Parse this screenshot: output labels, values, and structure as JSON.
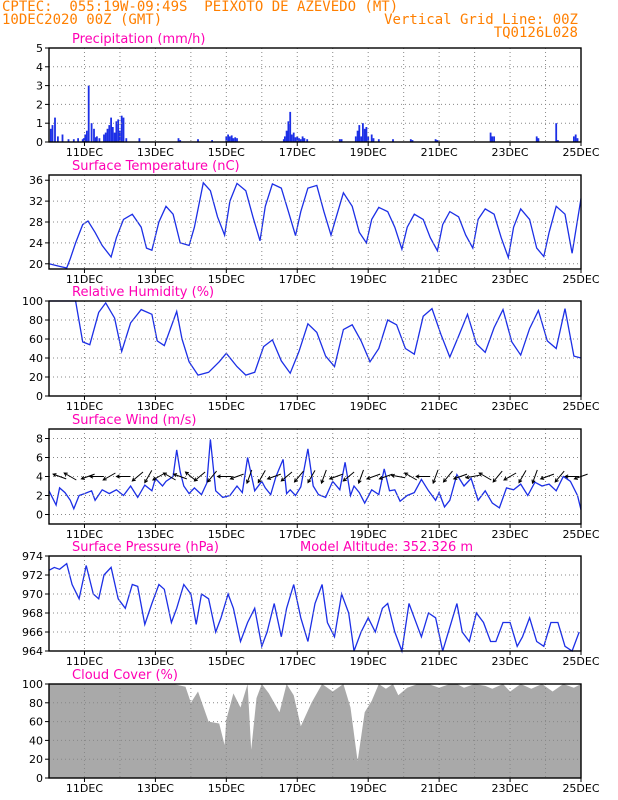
{
  "header": {
    "line1": "CPTEC:  055:19W-09:49S  PEIXOTO DE AZEVEDO (MT)",
    "line2_left": "10DEC2020 00Z (GMT)",
    "line2_right": "Vertical Grid Line: 00Z",
    "line3_right": "TQ0126L028"
  },
  "colors": {
    "header": "#ff7f00",
    "panel_title": "#ff00b4",
    "series": "#1c2fe6",
    "cloud": "#a9a9a9",
    "axis": "#000000"
  },
  "x_axis": {
    "range": [
      10.0,
      25.0
    ],
    "tick_values": [
      11,
      13,
      15,
      17,
      19,
      21,
      23,
      25
    ],
    "tick_labels": [
      "11DEC",
      "13DEC",
      "15DEC",
      "17DEC",
      "19DEC",
      "21DEC",
      "23DEC",
      "25DEC"
    ],
    "grid_every_day": true
  },
  "chart_data": [
    {
      "type": "bar",
      "title": "Precipitation (mm/h)",
      "ylim": [
        0,
        5
      ],
      "yticks": [
        0,
        1,
        2,
        3,
        4,
        5
      ],
      "grid": true,
      "x": [
        10.05,
        10.1,
        10.17,
        10.25,
        10.38,
        10.55,
        10.7,
        10.82,
        10.95,
        10.98,
        11.02,
        11.07,
        11.12,
        11.2,
        11.27,
        11.32,
        11.35,
        11.42,
        11.55,
        11.6,
        11.65,
        11.7,
        11.75,
        11.8,
        11.85,
        11.9,
        11.95,
        12.0,
        12.05,
        12.1,
        12.18,
        12.55,
        13.65,
        13.7,
        14.2,
        14.6,
        15.0,
        15.05,
        15.1,
        15.15,
        15.2,
        15.25,
        15.3,
        16.62,
        16.65,
        16.7,
        16.75,
        16.8,
        16.85,
        16.9,
        16.95,
        17.0,
        17.05,
        17.1,
        17.15,
        17.2,
        17.28,
        18.2,
        18.25,
        18.65,
        18.7,
        18.75,
        18.8,
        18.85,
        18.9,
        18.95,
        19.0,
        19.1,
        19.15,
        19.3,
        19.7,
        20.2,
        20.25,
        20.9,
        20.95,
        22.45,
        22.5,
        22.55,
        23.75,
        23.8,
        24.3,
        24.35,
        24.8,
        24.85,
        24.9
      ],
      "values": [
        0.7,
        0.9,
        1.3,
        0.3,
        0.4,
        0.15,
        0.15,
        0.2,
        0.15,
        0.2,
        0.4,
        0.6,
        3.0,
        1.0,
        0.7,
        0.25,
        0.3,
        0.2,
        0.4,
        0.5,
        0.7,
        0.9,
        1.3,
        0.8,
        0.5,
        1.1,
        1.2,
        0.6,
        1.4,
        1.3,
        0.2,
        0.2,
        0.2,
        0.1,
        0.15,
        0.1,
        0.3,
        0.4,
        0.3,
        0.35,
        0.2,
        0.25,
        0.2,
        0.15,
        0.3,
        0.6,
        1.1,
        1.6,
        0.4,
        0.5,
        0.25,
        0.3,
        0.2,
        0.15,
        0.3,
        0.2,
        0.15,
        0.15,
        0.15,
        0.3,
        0.6,
        0.9,
        0.3,
        1.0,
        0.7,
        0.8,
        0.3,
        0.4,
        0.2,
        0.15,
        0.15,
        0.15,
        0.1,
        0.15,
        0.1,
        0.5,
        0.3,
        0.3,
        0.3,
        0.2,
        1.0,
        0.1,
        0.3,
        0.4,
        0.2
      ]
    },
    {
      "type": "line",
      "title": "Surface Temperature (nC)",
      "ylim": [
        19,
        37
      ],
      "yticks": [
        20,
        24,
        28,
        32,
        36
      ],
      "grid": true,
      "x": [
        10.0,
        10.3,
        10.5,
        10.6,
        10.75,
        10.95,
        11.1,
        11.3,
        11.5,
        11.75,
        11.9,
        12.1,
        12.35,
        12.6,
        12.75,
        12.9,
        13.1,
        13.3,
        13.5,
        13.7,
        13.8,
        13.95,
        14.1,
        14.35,
        14.55,
        14.75,
        14.95,
        15.1,
        15.3,
        15.55,
        15.75,
        15.95,
        16.1,
        16.3,
        16.55,
        16.75,
        16.95,
        17.1,
        17.3,
        17.55,
        17.75,
        17.95,
        18.1,
        18.3,
        18.55,
        18.75,
        18.95,
        19.1,
        19.3,
        19.55,
        19.75,
        19.95,
        20.1,
        20.3,
        20.55,
        20.75,
        20.95,
        21.1,
        21.3,
        21.55,
        21.75,
        21.95,
        22.1,
        22.3,
        22.55,
        22.75,
        22.95,
        23.1,
        23.3,
        23.55,
        23.75,
        23.95,
        24.1,
        24.3,
        24.55,
        24.75,
        25.0
      ],
      "values": [
        20,
        19.5,
        19.2,
        21,
        24,
        27.5,
        28.2,
        26,
        23.5,
        21.3,
        25,
        28.5,
        29.5,
        27,
        23,
        22.6,
        28,
        31,
        29.5,
        24,
        23.8,
        23.5,
        27,
        35.5,
        34,
        29,
        25.5,
        32,
        35.4,
        34,
        29,
        24.4,
        31,
        35.3,
        34.5,
        30,
        25.4,
        30,
        34.5,
        35,
        30,
        25.5,
        29,
        33.6,
        31,
        26,
        24,
        28.5,
        30.8,
        30,
        27,
        22.8,
        27,
        29.5,
        28.5,
        25,
        22.5,
        27.5,
        30,
        29,
        25.5,
        23,
        28.5,
        30.5,
        29.5,
        25,
        21.2,
        27,
        30.5,
        28.5,
        23,
        21.4,
        26,
        31,
        29.5,
        22,
        32.5
      ]
    },
    {
      "type": "line",
      "title": "Relative Humidity (%)",
      "ylim": [
        0,
        100
      ],
      "yticks": [
        0,
        20,
        40,
        60,
        80,
        100
      ],
      "grid": true,
      "x": [
        10.0,
        10.5,
        10.75,
        10.95,
        11.15,
        11.4,
        11.6,
        11.85,
        12.05,
        12.3,
        12.6,
        12.9,
        13.05,
        13.25,
        13.6,
        13.75,
        13.95,
        14.2,
        14.5,
        14.8,
        15.0,
        15.3,
        15.55,
        15.8,
        16.05,
        16.3,
        16.55,
        16.8,
        17.05,
        17.3,
        17.55,
        17.8,
        18.05,
        18.3,
        18.55,
        18.8,
        19.05,
        19.3,
        19.55,
        19.8,
        20.05,
        20.3,
        20.55,
        20.8,
        21.05,
        21.3,
        21.55,
        21.8,
        22.05,
        22.3,
        22.55,
        22.8,
        23.05,
        23.3,
        23.55,
        23.8,
        24.05,
        24.3,
        24.55,
        24.8,
        25.0
      ],
      "values": [
        100,
        100,
        100,
        57,
        54,
        88,
        98,
        82,
        47,
        77,
        91,
        86,
        58,
        53,
        89,
        60,
        36,
        22,
        25,
        36,
        45,
        31,
        22,
        25,
        52,
        59,
        37,
        24,
        47,
        76,
        67,
        42,
        31,
        70,
        75,
        58,
        36,
        50,
        80,
        75,
        50,
        44,
        84,
        92,
        65,
        41,
        63,
        86,
        55,
        46,
        72,
        91,
        57,
        43,
        71,
        90,
        58,
        50,
        92,
        42,
        40
      ]
    },
    {
      "type": "line",
      "title": "Surface Wind (m/s)",
      "ylim": [
        -1,
        9
      ],
      "yticks": [
        0,
        2,
        4,
        6,
        8
      ],
      "grid": true,
      "x": [
        10.0,
        10.2,
        10.3,
        10.45,
        10.6,
        10.7,
        10.85,
        11.0,
        11.2,
        11.3,
        11.5,
        11.7,
        11.9,
        12.1,
        12.3,
        12.5,
        12.7,
        12.9,
        13.0,
        13.2,
        13.3,
        13.5,
        13.6,
        13.7,
        13.8,
        13.95,
        14.1,
        14.3,
        14.45,
        14.55,
        14.7,
        14.9,
        15.1,
        15.3,
        15.45,
        15.6,
        15.8,
        16.0,
        16.1,
        16.25,
        16.4,
        16.6,
        16.7,
        16.8,
        16.95,
        17.1,
        17.3,
        17.45,
        17.6,
        17.8,
        18.0,
        18.2,
        18.35,
        18.5,
        18.6,
        18.75,
        18.9,
        19.1,
        19.3,
        19.45,
        19.6,
        19.75,
        19.9,
        20.1,
        20.3,
        20.5,
        20.7,
        20.9,
        21.0,
        21.15,
        21.3,
        21.5,
        21.7,
        21.9,
        22.1,
        22.3,
        22.5,
        22.7,
        22.9,
        23.1,
        23.3,
        23.5,
        23.7,
        23.9,
        24.1,
        24.3,
        24.5,
        24.7,
        24.9,
        25.0
      ],
      "values": [
        2.5,
        1.0,
        2.8,
        2.3,
        1.5,
        0.6,
        2.0,
        2.2,
        2.5,
        1.5,
        2.6,
        2.2,
        2.6,
        2.0,
        3.0,
        1.8,
        3.1,
        2.5,
        3.8,
        3.0,
        3.5,
        4.0,
        6.8,
        4.5,
        3.0,
        2.2,
        2.8,
        2.1,
        3.3,
        7.9,
        2.5,
        1.8,
        2.0,
        3.0,
        2.3,
        6.0,
        2.5,
        3.5,
        2.8,
        2.1,
        4.0,
        5.8,
        2.2,
        2.6,
        2.0,
        2.9,
        6.9,
        3.0,
        2.1,
        1.8,
        3.5,
        2.6,
        5.5,
        2.0,
        3.0,
        2.3,
        1.2,
        2.6,
        2.1,
        4.8,
        2.5,
        2.6,
        1.4,
        2.0,
        2.3,
        3.7,
        2.5,
        1.5,
        2.3,
        0.8,
        1.5,
        4.2,
        3.0,
        3.8,
        1.5,
        2.5,
        1.2,
        0.7,
        2.8,
        2.6,
        3.2,
        2.0,
        3.4,
        3.0,
        3.2,
        2.5,
        4.0,
        3.5,
        2.0,
        0.5
      ]
    },
    {
      "type": "line",
      "title": "Surface Pressure (hPa)",
      "annotation": "Model Altitude: 352.326  m",
      "ylim": [
        964,
        974
      ],
      "yticks": [
        964,
        966,
        968,
        970,
        972,
        974
      ],
      "grid": true,
      "x": [
        10.0,
        10.15,
        10.3,
        10.5,
        10.65,
        10.85,
        11.05,
        11.25,
        11.4,
        11.55,
        11.75,
        11.95,
        12.15,
        12.35,
        12.5,
        12.7,
        12.9,
        13.1,
        13.25,
        13.45,
        13.6,
        13.8,
        14.0,
        14.15,
        14.3,
        14.5,
        14.7,
        14.85,
        15.05,
        15.2,
        15.4,
        15.6,
        15.8,
        16.0,
        16.15,
        16.35,
        16.55,
        16.7,
        16.9,
        17.1,
        17.3,
        17.5,
        17.7,
        17.85,
        18.05,
        18.25,
        18.45,
        18.6,
        18.8,
        19.0,
        19.2,
        19.4,
        19.55,
        19.75,
        19.95,
        20.15,
        20.3,
        20.5,
        20.7,
        20.9,
        21.1,
        21.3,
        21.5,
        21.65,
        21.85,
        22.05,
        22.25,
        22.45,
        22.6,
        22.8,
        23.0,
        23.2,
        23.35,
        23.55,
        23.75,
        23.95,
        24.15,
        24.35,
        24.55,
        24.75,
        24.95
      ],
      "values": [
        972.5,
        972.8,
        972.6,
        973.2,
        971.0,
        969.5,
        973.0,
        970.0,
        969.5,
        972.0,
        972.8,
        969.5,
        968.5,
        971.0,
        970.8,
        966.8,
        969.0,
        971.0,
        970.5,
        967.0,
        968.5,
        971.0,
        970.0,
        966.8,
        970.0,
        969.5,
        966.0,
        967.5,
        970.0,
        968.5,
        965.0,
        967.0,
        968.5,
        964.5,
        966.0,
        969.0,
        965.5,
        968.5,
        971.0,
        967.5,
        965.0,
        969.0,
        971.0,
        967.0,
        965.5,
        970.0,
        968.0,
        964.0,
        966.0,
        967.5,
        966.0,
        968.5,
        969.0,
        966.0,
        964.0,
        969.0,
        967.5,
        965.5,
        968.0,
        967.5,
        964.0,
        966.5,
        969.0,
        966.0,
        965.0,
        968.0,
        967.0,
        965.0,
        965.0,
        967.0,
        967.0,
        964.5,
        965.5,
        967.5,
        965.0,
        964.5,
        967.0,
        967.0,
        964.5,
        964.0,
        966.0
      ]
    },
    {
      "type": "area",
      "title": "Cloud Cover (%)",
      "ylim": [
        0,
        100
      ],
      "yticks": [
        0,
        20,
        40,
        60,
        80,
        100
      ],
      "grid": true,
      "x": [
        10.0,
        10.5,
        11.0,
        11.5,
        12.0,
        12.5,
        13.0,
        13.5,
        13.85,
        14.0,
        14.2,
        14.5,
        14.8,
        14.95,
        15.0,
        15.2,
        15.4,
        15.6,
        15.7,
        15.85,
        16.0,
        16.2,
        16.5,
        16.7,
        16.9,
        17.1,
        17.4,
        17.7,
        18.0,
        18.3,
        18.5,
        18.7,
        18.9,
        19.1,
        19.3,
        19.5,
        19.7,
        19.85,
        20.1,
        20.4,
        20.7,
        21.0,
        21.3,
        21.5,
        21.7,
        22.0,
        22.3,
        22.5,
        22.8,
        23.0,
        23.3,
        23.6,
        23.9,
        24.2,
        24.5,
        24.8,
        25.0
      ],
      "values": [
        100,
        100,
        100,
        100,
        100,
        100,
        100,
        100,
        97,
        80,
        92,
        60,
        58,
        35,
        62,
        90,
        75,
        100,
        30,
        85,
        100,
        90,
        70,
        100,
        88,
        55,
        80,
        100,
        92,
        100,
        75,
        18,
        70,
        82,
        100,
        95,
        100,
        88,
        96,
        100,
        100,
        96,
        100,
        100,
        96,
        100,
        98,
        95,
        100,
        92,
        100,
        95,
        100,
        92,
        100,
        96,
        100
      ]
    }
  ],
  "wind_arrows": {
    "x": [
      10.3,
      10.6,
      11.1,
      11.35,
      11.7,
      12.1,
      12.5,
      12.8,
      13.1,
      13.4,
      13.7,
      14.0,
      14.25,
      14.6,
      14.95,
      15.3,
      15.65,
      16.0,
      16.35,
      16.7,
      17.05,
      17.4,
      17.75,
      18.1,
      18.45,
      18.8,
      19.15,
      19.5,
      19.85,
      20.2,
      20.55,
      20.9,
      21.25,
      21.6,
      21.95,
      22.3,
      22.65,
      23.0,
      23.35,
      23.7,
      24.05,
      24.4,
      24.75,
      25.0
    ],
    "direction_deg": [
      160,
      150,
      200,
      180,
      210,
      180,
      220,
      240,
      210,
      150,
      160,
      140,
      220,
      230,
      180,
      200,
      250,
      240,
      200,
      220,
      230,
      240,
      250,
      200,
      220,
      250,
      200,
      200,
      170,
      150,
      180,
      250,
      230,
      200,
      190,
      150,
      230,
      210,
      240,
      250,
      200,
      230,
      180,
      200
    ],
    "arrow_level": 4.0
  }
}
